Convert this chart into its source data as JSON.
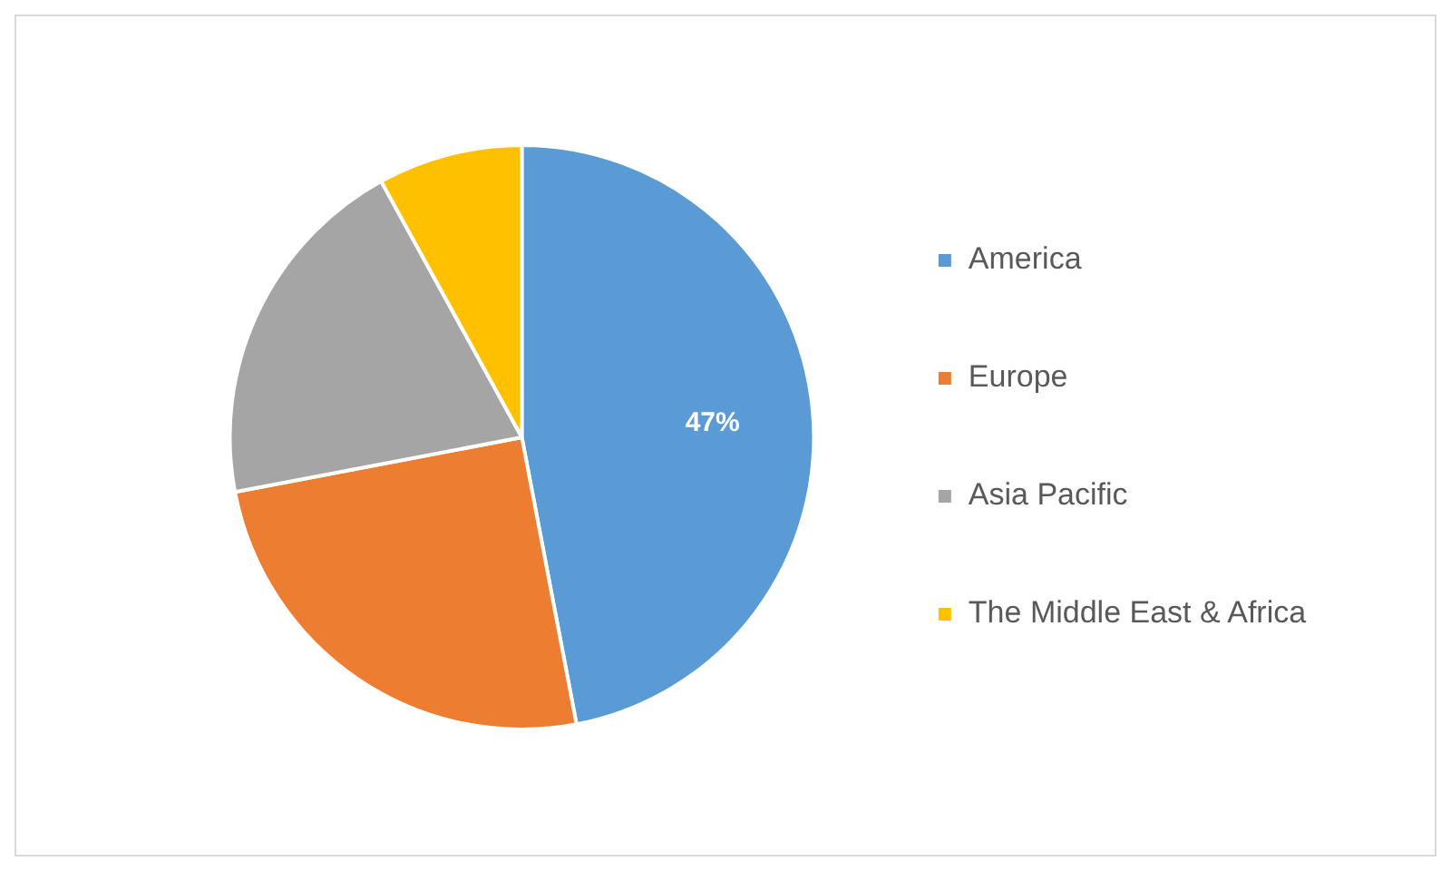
{
  "chart_data": {
    "type": "pie",
    "categories": [
      "America",
      "Europe",
      "Asia Pacific",
      "The Middle East & Africa"
    ],
    "values": [
      47,
      25,
      20,
      8
    ],
    "colors": [
      "#5b9bd5",
      "#ed7d31",
      "#a5a5a5",
      "#ffc000"
    ],
    "value_labels": [
      "47%",
      null,
      null,
      null
    ],
    "legend": "right"
  }
}
